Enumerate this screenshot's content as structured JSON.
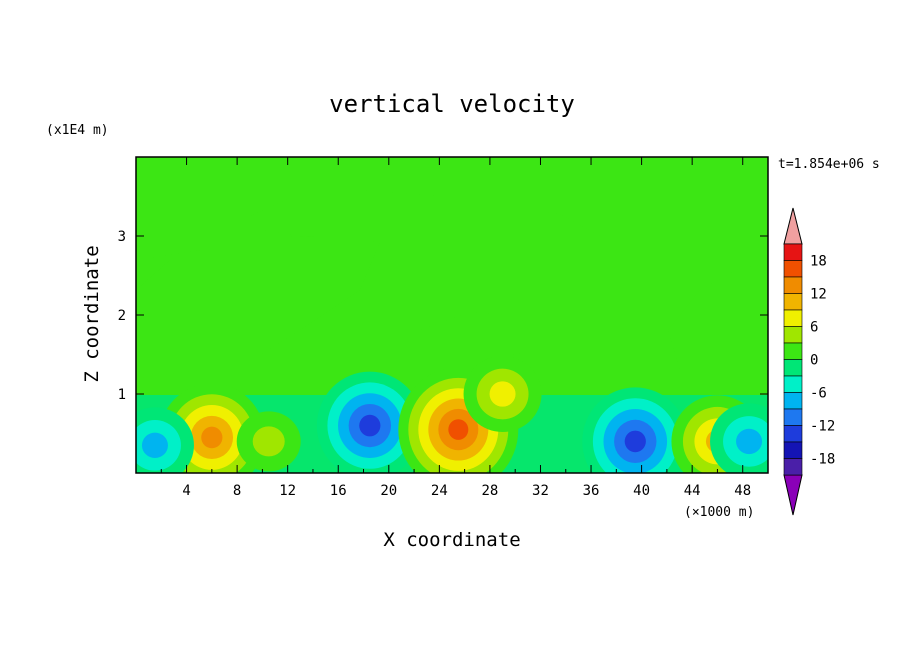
{
  "chart_data": {
    "type": "heatmap",
    "title": "vertical velocity",
    "xlabel": "X coordinate",
    "ylabel": "Z coordinate",
    "x_unit": "(×1000 m)",
    "y_unit": "(x1E4 m)",
    "time_label": "t=1.854e+06 s",
    "xlim": [
      0,
      50
    ],
    "ylim": [
      0,
      4
    ],
    "x_ticks": [
      "4",
      "8",
      "12",
      "16",
      "20",
      "24",
      "28",
      "32",
      "36",
      "40",
      "44",
      "48"
    ],
    "y_ticks": [
      "1",
      "2",
      "3"
    ],
    "colorbar": {
      "ticks": [
        "18",
        "12",
        "6",
        "0",
        "-6",
        "-12",
        "-18"
      ],
      "levels": [
        -21,
        -18,
        -15,
        -12,
        -9,
        -6,
        -3,
        0,
        3,
        6,
        9,
        12,
        15,
        18,
        21
      ],
      "colors": [
        "#8a00b8",
        "#4a1fa8",
        "#1414b4",
        "#1e3cdc",
        "#1e78f0",
        "#00b4f0",
        "#00f0c8",
        "#00e676",
        "#3ce614",
        "#a0e600",
        "#f0f000",
        "#f0b400",
        "#f08c00",
        "#f05000",
        "#e61414",
        "#f0a0a0"
      ],
      "extend": "both"
    },
    "features": [
      {
        "x": 6.0,
        "z": 0.45,
        "value": 12,
        "kind": "updraft"
      },
      {
        "x": 10.5,
        "z": 0.4,
        "value": 3,
        "kind": "updraft"
      },
      {
        "x": 18.5,
        "z": 0.6,
        "value": -12,
        "kind": "downdraft"
      },
      {
        "x": 25.5,
        "z": 0.55,
        "value": 15,
        "kind": "updraft"
      },
      {
        "x": 29.0,
        "z": 1.0,
        "value": 6,
        "kind": "updraft"
      },
      {
        "x": 39.5,
        "z": 0.4,
        "value": -12,
        "kind": "downdraft"
      },
      {
        "x": 46.0,
        "z": 0.4,
        "value": 9,
        "kind": "updraft"
      },
      {
        "x": 1.5,
        "z": 0.35,
        "value": -6,
        "kind": "downdraft"
      },
      {
        "x": 48.5,
        "z": 0.4,
        "value": -6,
        "kind": "downdraft"
      }
    ]
  }
}
